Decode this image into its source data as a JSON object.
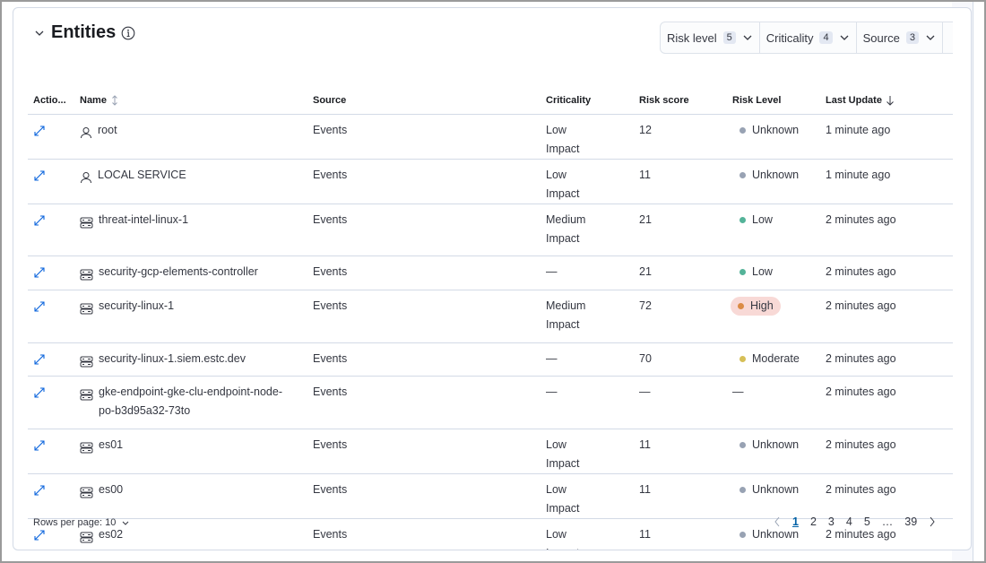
{
  "header": {
    "title": "Entities",
    "info_icon": "info-icon",
    "collapse_icon": "chevron-down-icon"
  },
  "filters": [
    {
      "label": "Risk level",
      "count": "5"
    },
    {
      "label": "Criticality",
      "count": "4"
    },
    {
      "label": "Source",
      "count": "3"
    }
  ],
  "table": {
    "columns": [
      "Actio...",
      "Name",
      "Source",
      "Criticality",
      "Risk score",
      "Risk Level",
      "Last Update"
    ],
    "rows": [
      {
        "type": "user",
        "name": "root",
        "source": "Events",
        "criticality": "Low Impact",
        "score": "12",
        "level": "Unknown",
        "updated": "1 minute ago"
      },
      {
        "type": "user",
        "name": "LOCAL SERVICE",
        "source": "Events",
        "criticality": "Low Impact",
        "score": "11",
        "level": "Unknown",
        "updated": "1 minute ago"
      },
      {
        "type": "host",
        "name": "threat-intel-linux-1",
        "source": "Events",
        "criticality": "Medium Impact",
        "score": "21",
        "level": "Low",
        "updated": "2 minutes ago"
      },
      {
        "type": "host",
        "name": "security-gcp-elements-controller",
        "source": "Events",
        "criticality": "—",
        "score": "21",
        "level": "Low",
        "updated": "2 minutes ago"
      },
      {
        "type": "host",
        "name": "security-linux-1",
        "source": "Events",
        "criticality": "Medium Impact",
        "score": "72",
        "level": "High",
        "updated": "2 minutes ago"
      },
      {
        "type": "host",
        "name": "security-linux-1.siem.estc.dev",
        "source": "Events",
        "criticality": "—",
        "score": "70",
        "level": "Moderate",
        "updated": "2 minutes ago"
      },
      {
        "type": "host",
        "name": "gke-endpoint-gke-clu-endpoint-node-po-b3d95a32-73to",
        "source": "Events",
        "criticality": "—",
        "score": "—",
        "level": "—",
        "updated": "2 minutes ago"
      },
      {
        "type": "host",
        "name": "es01",
        "source": "Events",
        "criticality": "Low Impact",
        "score": "11",
        "level": "Unknown",
        "updated": "2 minutes ago"
      },
      {
        "type": "host",
        "name": "es00",
        "source": "Events",
        "criticality": "Low Impact",
        "score": "11",
        "level": "Unknown",
        "updated": "2 minutes ago"
      },
      {
        "type": "host",
        "name": "es02",
        "source": "Events",
        "criticality": "Low Impact",
        "score": "11",
        "level": "Unknown",
        "updated": "2 minutes ago"
      }
    ]
  },
  "level_colors": {
    "Unknown": "#98a2b3",
    "Low": "#54b399",
    "Moderate": "#d6bf57",
    "High": "#da8b45",
    "High_bg": "#f8d9d6"
  },
  "footer": {
    "rows_per_page": "Rows per page: 10",
    "pages": [
      "1",
      "2",
      "3",
      "4",
      "5",
      "…",
      "39"
    ],
    "current_page": "1"
  }
}
